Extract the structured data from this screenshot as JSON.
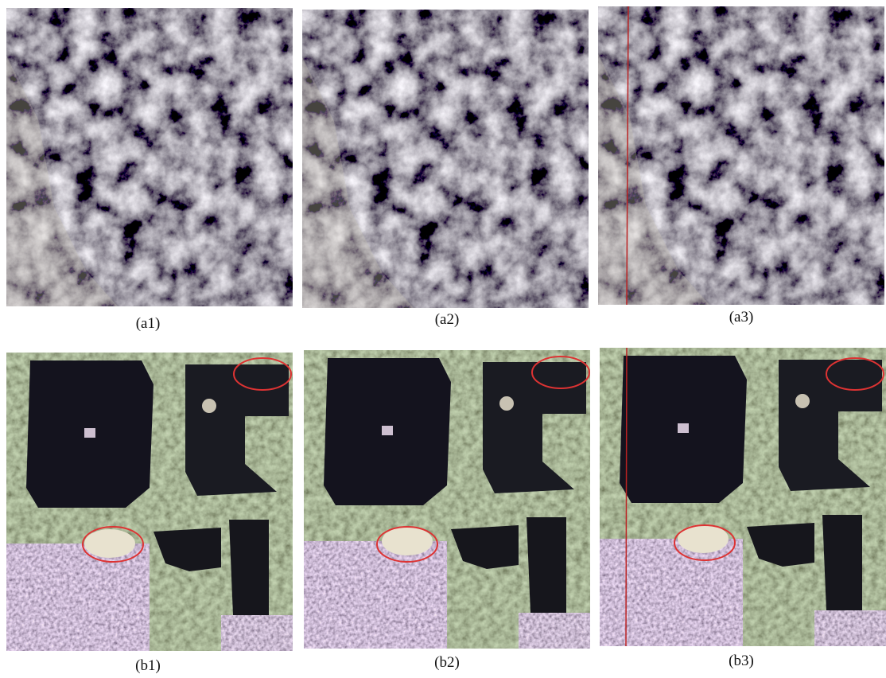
{
  "figure": {
    "panels": [
      {
        "label": "(a1)"
      },
      {
        "label": "(a2)"
      },
      {
        "label": "(a3)"
      },
      {
        "label": "(b1)"
      },
      {
        "label": "(b2)"
      },
      {
        "label": "(b3)"
      }
    ]
  }
}
